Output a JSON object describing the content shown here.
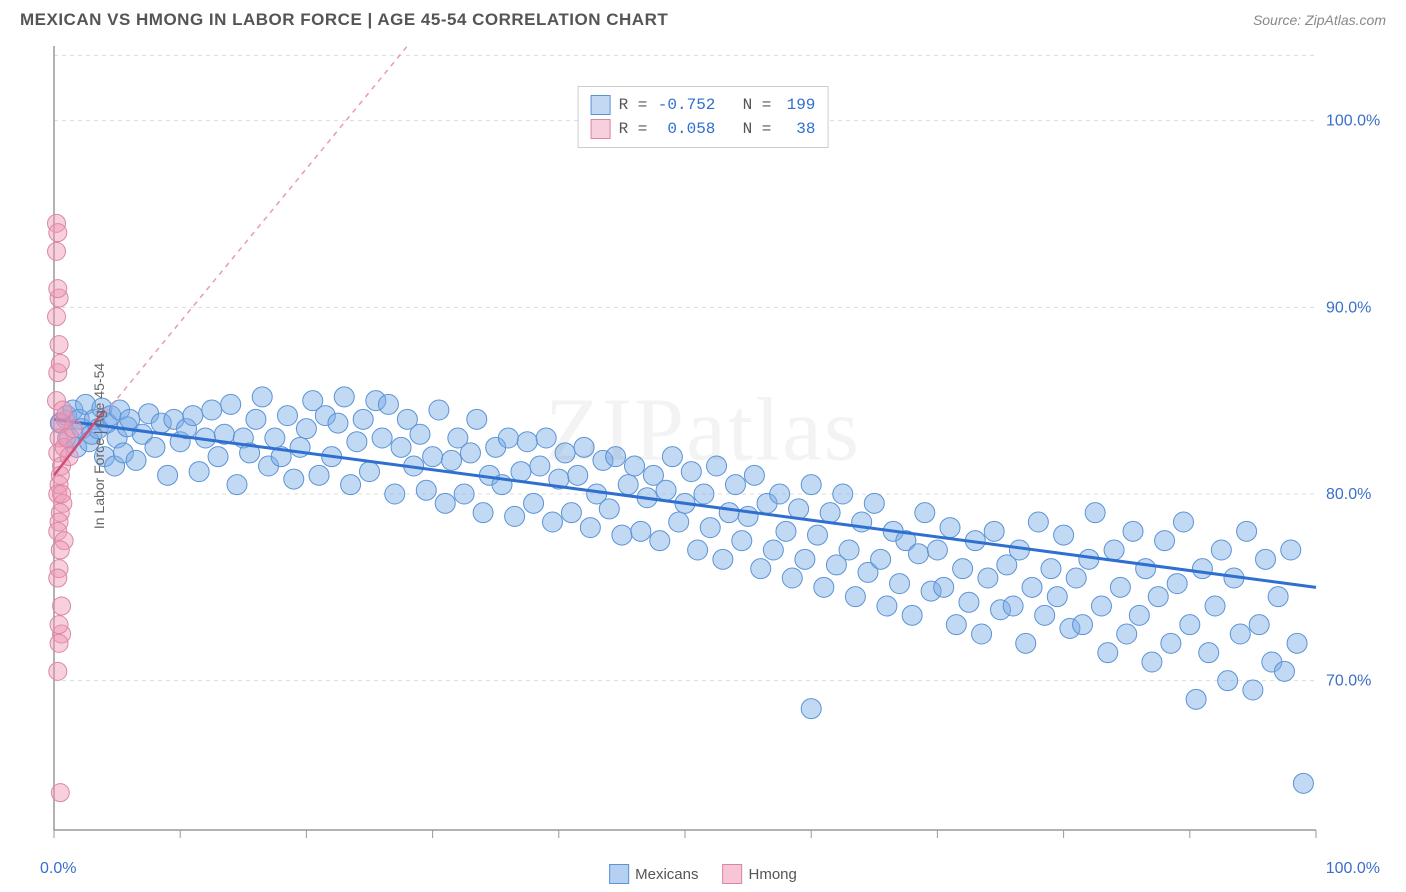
{
  "title": "MEXICAN VS HMONG IN LABOR FORCE | AGE 45-54 CORRELATION CHART",
  "source": "Source: ZipAtlas.com",
  "watermark": "ZIPatlas",
  "ylabel": "In Labor Force | Age 45-54",
  "chart": {
    "type": "scatter",
    "background_color": "#ffffff",
    "grid_color": "#dcdcdc",
    "axis_color": "#999999",
    "label_color": "#3b6fc9",
    "xlim": [
      0,
      100
    ],
    "ylim": [
      62,
      104
    ],
    "x_ticks": [
      0,
      10,
      20,
      30,
      40,
      50,
      60,
      70,
      80,
      90,
      100
    ],
    "x_tick_labels": {
      "0": "0.0%",
      "100": "100.0%"
    },
    "y_gridlines": [
      70,
      80,
      90,
      100,
      103.5
    ],
    "y_tick_labels": {
      "70": "70.0%",
      "80": "80.0%",
      "90": "90.0%",
      "100": "100.0%"
    },
    "series": [
      {
        "name": "Mexicans",
        "fill": "rgba(120,170,230,0.45)",
        "stroke": "#5b93d6",
        "marker_radius": 10,
        "R": "-0.752",
        "N": "199",
        "trend": {
          "x1": 0,
          "y1": 84.0,
          "x2": 100,
          "y2": 75.0,
          "color": "#2e6fd0",
          "width": 3,
          "dash": "none"
        },
        "points": [
          [
            0.5,
            83.8
          ],
          [
            1,
            84.2
          ],
          [
            1.2,
            83.0
          ],
          [
            1.5,
            84.5
          ],
          [
            1.8,
            82.5
          ],
          [
            2,
            84.0
          ],
          [
            2.2,
            83.5
          ],
          [
            2.5,
            84.8
          ],
          [
            2.8,
            82.8
          ],
          [
            3,
            83.2
          ],
          [
            3.2,
            84.0
          ],
          [
            3.5,
            83.5
          ],
          [
            3.8,
            84.6
          ],
          [
            4,
            82.0
          ],
          [
            4.2,
            83.8
          ],
          [
            4.5,
            84.2
          ],
          [
            4.8,
            81.5
          ],
          [
            5,
            83.0
          ],
          [
            5.2,
            84.5
          ],
          [
            5.5,
            82.2
          ],
          [
            5.8,
            83.6
          ],
          [
            6,
            84.0
          ],
          [
            6.5,
            81.8
          ],
          [
            7,
            83.2
          ],
          [
            7.5,
            84.3
          ],
          [
            8,
            82.5
          ],
          [
            8.5,
            83.8
          ],
          [
            9,
            81.0
          ],
          [
            9.5,
            84.0
          ],
          [
            10,
            82.8
          ],
          [
            10.5,
            83.5
          ],
          [
            11,
            84.2
          ],
          [
            11.5,
            81.2
          ],
          [
            12,
            83.0
          ],
          [
            12.5,
            84.5
          ],
          [
            13,
            82.0
          ],
          [
            13.5,
            83.2
          ],
          [
            14,
            84.8
          ],
          [
            14.5,
            80.5
          ],
          [
            15,
            83.0
          ],
          [
            15.5,
            82.2
          ],
          [
            16,
            84.0
          ],
          [
            16.5,
            85.2
          ],
          [
            17,
            81.5
          ],
          [
            17.5,
            83.0
          ],
          [
            18,
            82.0
          ],
          [
            18.5,
            84.2
          ],
          [
            19,
            80.8
          ],
          [
            19.5,
            82.5
          ],
          [
            20,
            83.5
          ],
          [
            20.5,
            85.0
          ],
          [
            21,
            81.0
          ],
          [
            21.5,
            84.2
          ],
          [
            22,
            82.0
          ],
          [
            22.5,
            83.8
          ],
          [
            23,
            85.2
          ],
          [
            23.5,
            80.5
          ],
          [
            24,
            82.8
          ],
          [
            24.5,
            84.0
          ],
          [
            25,
            81.2
          ],
          [
            25.5,
            85.0
          ],
          [
            26,
            83.0
          ],
          [
            26.5,
            84.8
          ],
          [
            27,
            80.0
          ],
          [
            27.5,
            82.5
          ],
          [
            28,
            84.0
          ],
          [
            28.5,
            81.5
          ],
          [
            29,
            83.2
          ],
          [
            29.5,
            80.2
          ],
          [
            30,
            82.0
          ],
          [
            30.5,
            84.5
          ],
          [
            31,
            79.5
          ],
          [
            31.5,
            81.8
          ],
          [
            32,
            83.0
          ],
          [
            32.5,
            80.0
          ],
          [
            33,
            82.2
          ],
          [
            33.5,
            84.0
          ],
          [
            34,
            79.0
          ],
          [
            34.5,
            81.0
          ],
          [
            35,
            82.5
          ],
          [
            35.5,
            80.5
          ],
          [
            36,
            83.0
          ],
          [
            36.5,
            78.8
          ],
          [
            37,
            81.2
          ],
          [
            37.5,
            82.8
          ],
          [
            38,
            79.5
          ],
          [
            38.5,
            81.5
          ],
          [
            39,
            83.0
          ],
          [
            39.5,
            78.5
          ],
          [
            40,
            80.8
          ],
          [
            40.5,
            82.2
          ],
          [
            41,
            79.0
          ],
          [
            41.5,
            81.0
          ],
          [
            42,
            82.5
          ],
          [
            42.5,
            78.2
          ],
          [
            43,
            80.0
          ],
          [
            43.5,
            81.8
          ],
          [
            44,
            79.2
          ],
          [
            44.5,
            82.0
          ],
          [
            45,
            77.8
          ],
          [
            45.5,
            80.5
          ],
          [
            46,
            81.5
          ],
          [
            46.5,
            78.0
          ],
          [
            47,
            79.8
          ],
          [
            47.5,
            81.0
          ],
          [
            48,
            77.5
          ],
          [
            48.5,
            80.2
          ],
          [
            49,
            82.0
          ],
          [
            49.5,
            78.5
          ],
          [
            50,
            79.5
          ],
          [
            50.5,
            81.2
          ],
          [
            51,
            77.0
          ],
          [
            51.5,
            80.0
          ],
          [
            52,
            78.2
          ],
          [
            52.5,
            81.5
          ],
          [
            53,
            76.5
          ],
          [
            53.5,
            79.0
          ],
          [
            54,
            80.5
          ],
          [
            54.5,
            77.5
          ],
          [
            55,
            78.8
          ],
          [
            55.5,
            81.0
          ],
          [
            56,
            76.0
          ],
          [
            56.5,
            79.5
          ],
          [
            57,
            77.0
          ],
          [
            57.5,
            80.0
          ],
          [
            58,
            78.0
          ],
          [
            58.5,
            75.5
          ],
          [
            59,
            79.2
          ],
          [
            59.5,
            76.5
          ],
          [
            60,
            80.5
          ],
          [
            60.5,
            77.8
          ],
          [
            61,
            75.0
          ],
          [
            61.5,
            79.0
          ],
          [
            62,
            76.2
          ],
          [
            62.5,
            80.0
          ],
          [
            63,
            77.0
          ],
          [
            63.5,
            74.5
          ],
          [
            64,
            78.5
          ],
          [
            64.5,
            75.8
          ],
          [
            65,
            79.5
          ],
          [
            65.5,
            76.5
          ],
          [
            66,
            74.0
          ],
          [
            66.5,
            78.0
          ],
          [
            67,
            75.2
          ],
          [
            67.5,
            77.5
          ],
          [
            68,
            73.5
          ],
          [
            68.5,
            76.8
          ],
          [
            69,
            79.0
          ],
          [
            69.5,
            74.8
          ],
          [
            70,
            77.0
          ],
          [
            70.5,
            75.0
          ],
          [
            71,
            78.2
          ],
          [
            71.5,
            73.0
          ],
          [
            72,
            76.0
          ],
          [
            72.5,
            74.2
          ],
          [
            73,
            77.5
          ],
          [
            73.5,
            72.5
          ],
          [
            74,
            75.5
          ],
          [
            74.5,
            78.0
          ],
          [
            75,
            73.8
          ],
          [
            75.5,
            76.2
          ],
          [
            76,
            74.0
          ],
          [
            76.5,
            77.0
          ],
          [
            77,
            72.0
          ],
          [
            77.5,
            75.0
          ],
          [
            78,
            78.5
          ],
          [
            78.5,
            73.5
          ],
          [
            79,
            76.0
          ],
          [
            79.5,
            74.5
          ],
          [
            80,
            77.8
          ],
          [
            80.5,
            72.8
          ],
          [
            81,
            75.5
          ],
          [
            81.5,
            73.0
          ],
          [
            82,
            76.5
          ],
          [
            82.5,
            79.0
          ],
          [
            83,
            74.0
          ],
          [
            83.5,
            71.5
          ],
          [
            84,
            77.0
          ],
          [
            84.5,
            75.0
          ],
          [
            85,
            72.5
          ],
          [
            85.5,
            78.0
          ],
          [
            86,
            73.5
          ],
          [
            86.5,
            76.0
          ],
          [
            87,
            71.0
          ],
          [
            87.5,
            74.5
          ],
          [
            88,
            77.5
          ],
          [
            88.5,
            72.0
          ],
          [
            89,
            75.2
          ],
          [
            89.5,
            78.5
          ],
          [
            90,
            73.0
          ],
          [
            90.5,
            69.0
          ],
          [
            91,
            76.0
          ],
          [
            91.5,
            71.5
          ],
          [
            92,
            74.0
          ],
          [
            92.5,
            77.0
          ],
          [
            93,
            70.0
          ],
          [
            93.5,
            75.5
          ],
          [
            94,
            72.5
          ],
          [
            94.5,
            78.0
          ],
          [
            95,
            69.5
          ],
          [
            95.5,
            73.0
          ],
          [
            96,
            76.5
          ],
          [
            96.5,
            71.0
          ],
          [
            97,
            74.5
          ],
          [
            97.5,
            70.5
          ],
          [
            98,
            77.0
          ],
          [
            98.5,
            72.0
          ],
          [
            99,
            64.5
          ],
          [
            60,
            68.5
          ]
        ]
      },
      {
        "name": "Hmong",
        "fill": "rgba(240,150,180,0.45)",
        "stroke": "#d987a8",
        "marker_radius": 9,
        "R": "0.058",
        "N": "38",
        "trend": {
          "x1": 0,
          "y1": 81.0,
          "x2": 28,
          "y2": 104.0,
          "color": "#e89ab5",
          "width": 1.5,
          "dash": "5,5"
        },
        "trend_solid": {
          "x1": 0,
          "y1": 81.0,
          "x2": 4,
          "y2": 84.5,
          "color": "#d04d7a",
          "width": 2.5
        },
        "points": [
          [
            0.2,
            94.5
          ],
          [
            0.3,
            94.0
          ],
          [
            0.2,
            89.5
          ],
          [
            0.4,
            88.0
          ],
          [
            0.3,
            86.5
          ],
          [
            0.2,
            85.0
          ],
          [
            0.5,
            83.8
          ],
          [
            0.4,
            83.0
          ],
          [
            0.3,
            82.2
          ],
          [
            0.6,
            81.5
          ],
          [
            0.5,
            81.0
          ],
          [
            0.4,
            80.5
          ],
          [
            0.3,
            80.0
          ],
          [
            0.7,
            79.5
          ],
          [
            0.5,
            79.0
          ],
          [
            0.4,
            78.5
          ],
          [
            0.3,
            78.0
          ],
          [
            0.8,
            77.5
          ],
          [
            0.5,
            77.0
          ],
          [
            0.4,
            76.0
          ],
          [
            0.3,
            75.5
          ],
          [
            0.6,
            72.5
          ],
          [
            0.4,
            72.0
          ],
          [
            0.5,
            64.0
          ],
          [
            0.8,
            82.5
          ],
          [
            1.0,
            83.0
          ],
          [
            1.2,
            82.0
          ],
          [
            1.5,
            83.5
          ],
          [
            0.9,
            84.0
          ],
          [
            0.7,
            84.5
          ],
          [
            0.6,
            80.0
          ],
          [
            0.5,
            87.0
          ],
          [
            0.4,
            90.5
          ],
          [
            0.3,
            91.0
          ],
          [
            0.2,
            93.0
          ],
          [
            0.6,
            74.0
          ],
          [
            0.4,
            73.0
          ],
          [
            0.3,
            70.5
          ]
        ]
      }
    ],
    "legend_bottom": [
      {
        "label": "Mexicans",
        "fill": "rgba(120,170,230,0.55)",
        "stroke": "#5b93d6"
      },
      {
        "label": "Hmong",
        "fill": "rgba(240,150,180,0.55)",
        "stroke": "#d987a8"
      }
    ]
  }
}
